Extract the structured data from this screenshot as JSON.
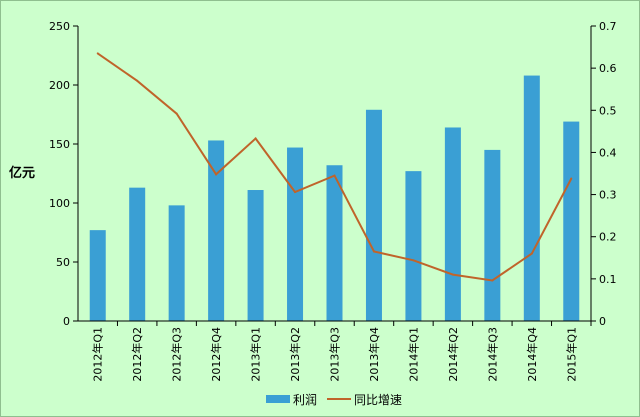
{
  "chart_data": {
    "type": "bar+line",
    "categories": [
      "2012年Q1",
      "2012年Q2",
      "2012年Q3",
      "2012年Q4",
      "2013年Q1",
      "2013年Q2",
      "2013年Q3",
      "2013年Q4",
      "2014年Q1",
      "2014年Q2",
      "2014年Q3",
      "2014年Q4",
      "2015年Q1"
    ],
    "series": [
      {
        "name": "利润",
        "type": "bar",
        "axis": "left",
        "color": "#3a9fd4",
        "values": [
          77,
          113,
          98,
          153,
          111,
          147,
          132,
          179,
          127,
          164,
          145,
          208,
          169
        ]
      },
      {
        "name": "同比增速",
        "type": "line",
        "axis": "right",
        "color": "#c0642a",
        "values": [
          0.635,
          0.57,
          0.492,
          0.348,
          0.433,
          0.306,
          0.345,
          0.165,
          0.144,
          0.11,
          0.096,
          0.16,
          0.338
        ]
      }
    ],
    "ylabel": "亿元",
    "ylim": [
      0,
      250
    ],
    "y_ticks": [
      "0",
      "50",
      "100",
      "150",
      "200",
      "250"
    ],
    "y2lim": [
      0,
      0.7
    ],
    "y2_ticks": [
      "0",
      "0.1",
      "0.2",
      "0.3",
      "0.4",
      "0.5",
      "0.6",
      "0.7"
    ],
    "grid": false,
    "legend_position": "bottom"
  }
}
